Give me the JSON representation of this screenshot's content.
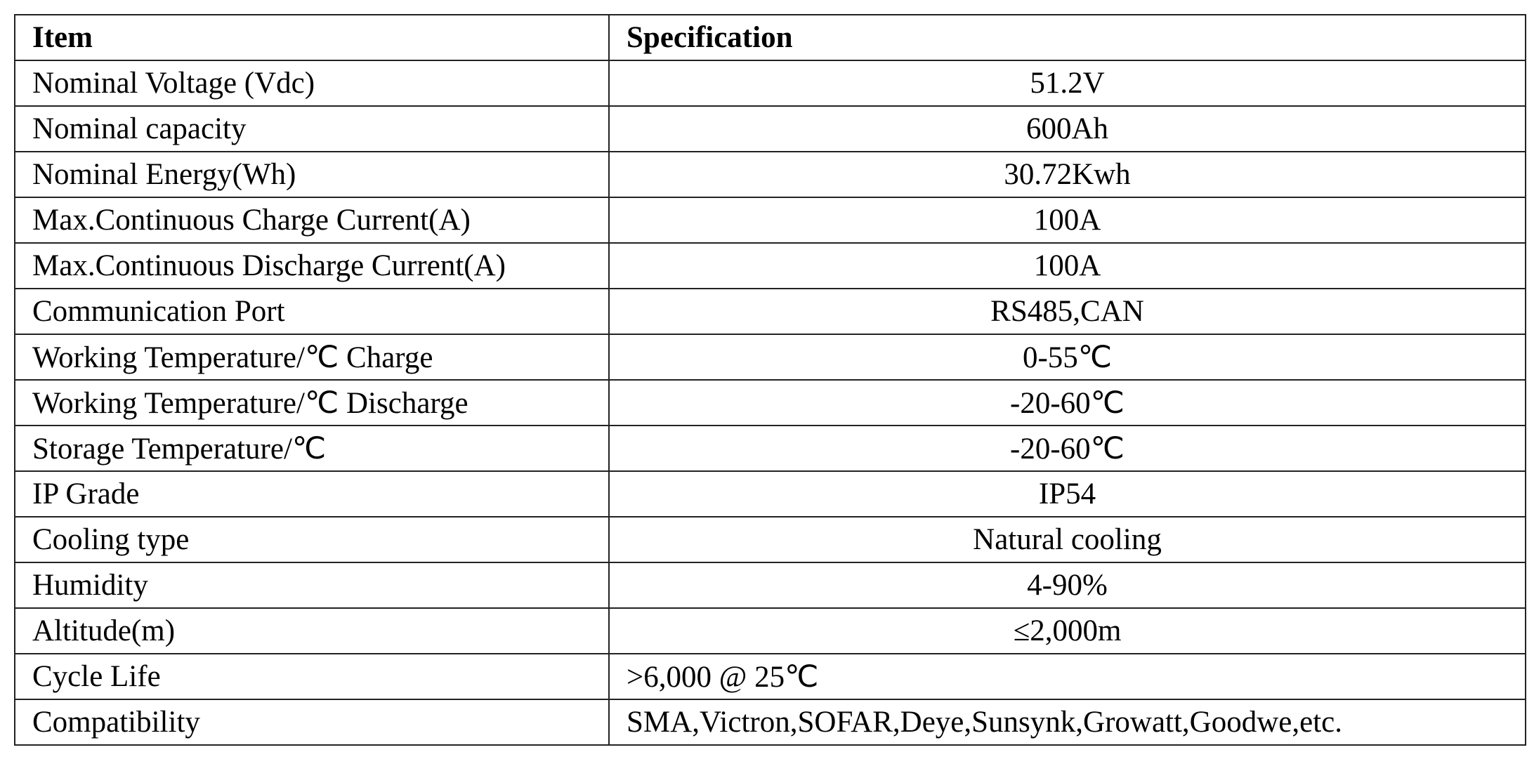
{
  "table": {
    "header": [
      "Item",
      "Specification"
    ],
    "rows": [
      [
        "Nominal Voltage (Vdc)",
        "51.2V"
      ],
      [
        "Nominal capacity",
        "600Ah"
      ],
      [
        "Nominal Energy(Wh)",
        "30.72Kwh"
      ],
      [
        "Max.Continuous Charge Current(A)",
        "100A"
      ],
      [
        "Max.Continuous Discharge Current(A)",
        "100A"
      ],
      [
        "Communication Port",
        "RS485,CAN"
      ],
      [
        "Working Temperature/℃ Charge",
        "0-55℃"
      ],
      [
        "Working Temperature/℃ Discharge",
        "-20-60℃"
      ],
      [
        "Storage Temperature/℃",
        "-20-60℃"
      ],
      [
        "IP Grade",
        "IP54"
      ],
      [
        "Cooling type",
        "Natural cooling"
      ],
      [
        "Humidity",
        "4-90%"
      ],
      [
        "Altitude(m)",
        "≤2,000m"
      ],
      [
        "Cycle Life",
        ">6,000 @ 25℃"
      ],
      [
        "Compatibility",
        "SMA,Victron,SOFAR,Deye,Sunsynk,Growatt,Goodwe,etc."
      ]
    ]
  }
}
